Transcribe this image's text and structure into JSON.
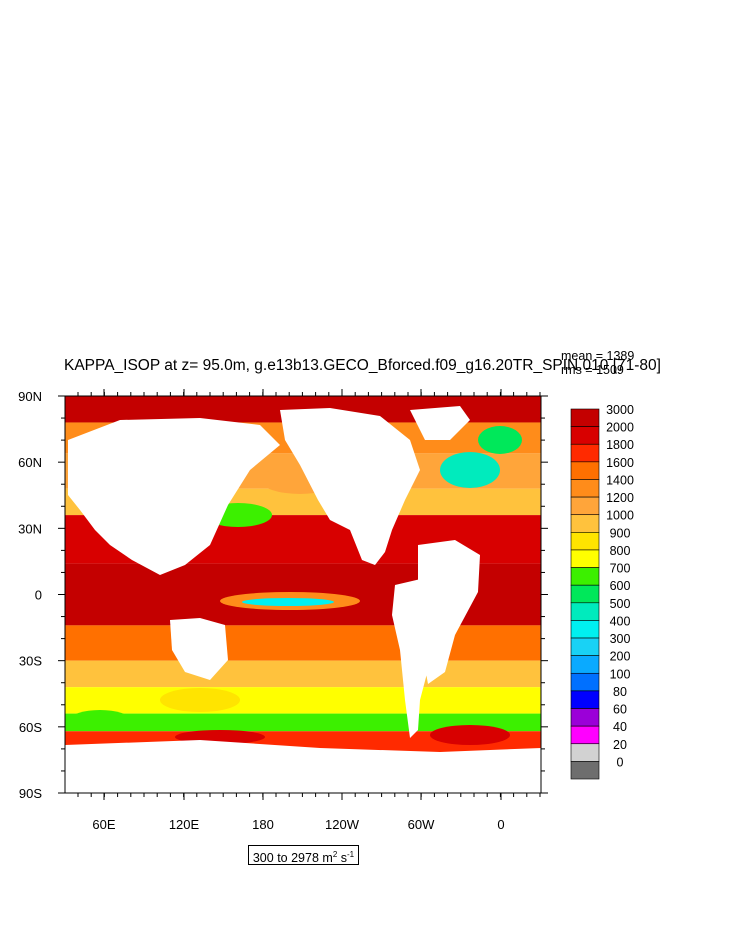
{
  "figure": {
    "title": "KAPPA_ISOP at z=  95.0m, g.e13b13.GECO_Bforced.f09_g16.20TR_SPIN.010 [71-80]",
    "mean_label": "mean = 1389",
    "rms_label": "rms = 1509",
    "units_range": "300 to 2978",
    "units_base": "m",
    "units_exp": "2",
    "units_s": "s",
    "units_s_exp": "-1"
  },
  "chart_data": {
    "type": "heatmap",
    "variable": "KAPPA_ISOP",
    "depth": "95.0m",
    "case": "g.e13b13.GECO_Bforced.f09_g16.20TR_SPIN.010",
    "years": "71-80",
    "mean": 1389,
    "rms": 1509,
    "range_min": 300,
    "range_max": 2978,
    "units": "m2 s-1",
    "ylim": [
      -90,
      90
    ],
    "y_ticks": [
      "90N",
      "60N",
      "30N",
      "0",
      "30S",
      "60S",
      "90S"
    ],
    "x_ticks": [
      "60E",
      "120E",
      "180",
      "120W",
      "60W",
      "0"
    ],
    "colorbar_levels": [
      3000,
      2000,
      1800,
      1600,
      1400,
      1200,
      1000,
      900,
      800,
      700,
      600,
      500,
      400,
      300,
      200,
      100,
      80,
      60,
      40,
      20,
      0
    ],
    "colorbar_colors": [
      "#c40000",
      "#d80000",
      "#ff2a00",
      "#ff7000",
      "#ff8c1a",
      "#ffa53a",
      "#ffc23d",
      "#ffe400",
      "#ffff00",
      "#3cf000",
      "#00e85a",
      "#00ebbd",
      "#00f0f0",
      "#19d2f5",
      "#0aaaff",
      "#0070ff",
      "#0000ff",
      "#9b00d8",
      "#ff00ff",
      "#d2d2d2",
      "#6e6e6e"
    ],
    "legend": "right"
  }
}
